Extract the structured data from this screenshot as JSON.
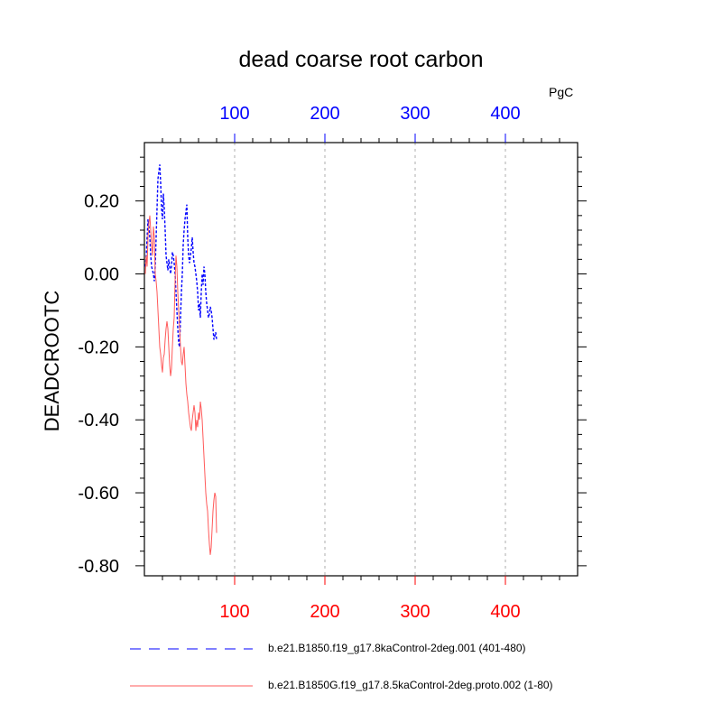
{
  "chart_data": {
    "type": "line",
    "title": "dead coarse root carbon",
    "ylabel": "DEADCROOTC",
    "units": "PgC",
    "xlim": [
      0,
      480
    ],
    "ylim": [
      -0.8275,
      0.36
    ],
    "x_ticks_bottom": [
      100,
      200,
      300,
      400
    ],
    "x_ticks_top": [
      100,
      200,
      300,
      400
    ],
    "y_ticks": [
      0.2,
      0.0,
      -0.2,
      -0.4,
      -0.6,
      -0.8
    ],
    "y_tick_labels": [
      "0.20",
      "0.00",
      "-0.20",
      "-0.40",
      "-0.60",
      "-0.80"
    ],
    "grid": "vertical dashed at top x ticks",
    "colors": {
      "blue_axis": "#0000ff",
      "red_axis": "#ff0000",
      "series_blue": "#0000ff",
      "series_red": "#ff5a5a"
    },
    "series": [
      {
        "name": "b.e21.B1850.f19_g17.8kaControl-2deg.001 (401-480)",
        "color": "#0000ff",
        "style": "dashed",
        "x": [
          1,
          2,
          3,
          4,
          5,
          6,
          7,
          8,
          9,
          10,
          11,
          12,
          13,
          14,
          15,
          16,
          17,
          18,
          19,
          20,
          21,
          22,
          23,
          24,
          25,
          26,
          27,
          28,
          29,
          30,
          31,
          32,
          33,
          34,
          35,
          36,
          37,
          38,
          39,
          40,
          41,
          42,
          43,
          44,
          45,
          46,
          47,
          48,
          49,
          50,
          51,
          52,
          53,
          54,
          55,
          56,
          57,
          58,
          59,
          60,
          61,
          62,
          63,
          64,
          65,
          66,
          67,
          68,
          69,
          70,
          71,
          72,
          73,
          74,
          75,
          76,
          77,
          78,
          79,
          80
        ],
        "y": [
          0.02,
          0.05,
          0.1,
          0.15,
          0.13,
          0.1,
          0.05,
          0.02,
          0.01,
          0.0,
          -0.02,
          0.02,
          0.1,
          0.18,
          0.26,
          0.28,
          0.3,
          0.25,
          0.18,
          0.15,
          0.22,
          0.18,
          0.12,
          0.05,
          0.03,
          0.01,
          0.04,
          0.02,
          0.0,
          0.02,
          0.06,
          0.05,
          0.03,
          0.0,
          -0.05,
          -0.1,
          -0.15,
          -0.19,
          -0.2,
          -0.12,
          -0.05,
          0.0,
          0.08,
          0.12,
          0.15,
          0.17,
          0.19,
          0.1,
          0.05,
          0.03,
          0.05,
          0.07,
          0.1,
          0.06,
          0.03,
          0.02,
          0.0,
          -0.02,
          -0.05,
          -0.1,
          -0.08,
          -0.12,
          -0.05,
          0.0,
          -0.03,
          0.02,
          0.0,
          -0.05,
          -0.08,
          -0.1,
          -0.12,
          -0.11,
          -0.09,
          -0.1,
          -0.12,
          -0.15,
          -0.18,
          -0.17,
          -0.16,
          -0.18
        ]
      },
      {
        "name": "b.e21.B1850G.f19_g17.8.5kaControl-2deg.proto.002 (1-80)",
        "color": "#ff5a5a",
        "style": "solid",
        "x": [
          1,
          2,
          3,
          4,
          5,
          6,
          7,
          8,
          9,
          10,
          11,
          12,
          13,
          14,
          15,
          16,
          17,
          18,
          19,
          20,
          21,
          22,
          23,
          24,
          25,
          26,
          27,
          28,
          29,
          30,
          31,
          32,
          33,
          34,
          35,
          36,
          37,
          38,
          39,
          40,
          41,
          42,
          43,
          44,
          45,
          46,
          47,
          48,
          49,
          50,
          51,
          52,
          53,
          54,
          55,
          56,
          57,
          58,
          59,
          60,
          61,
          62,
          63,
          64,
          65,
          66,
          67,
          68,
          69,
          70,
          71,
          72,
          73,
          74,
          75,
          76,
          77,
          78,
          79,
          80
        ],
        "y": [
          0.0,
          0.05,
          0.02,
          0.1,
          0.14,
          0.16,
          0.12,
          0.08,
          0.05,
          0.13,
          0.1,
          0.0,
          -0.02,
          -0.05,
          -0.1,
          -0.15,
          -0.2,
          -0.22,
          -0.25,
          -0.27,
          -0.23,
          -0.22,
          -0.18,
          -0.15,
          -0.13,
          -0.15,
          -0.2,
          -0.25,
          -0.28,
          -0.26,
          -0.2,
          -0.15,
          -0.12,
          -0.02,
          0.05,
          0.02,
          -0.05,
          -0.1,
          -0.15,
          -0.2,
          -0.24,
          -0.25,
          -0.22,
          -0.2,
          -0.25,
          -0.3,
          -0.33,
          -0.35,
          -0.38,
          -0.4,
          -0.42,
          -0.43,
          -0.4,
          -0.38,
          -0.36,
          -0.38,
          -0.43,
          -0.4,
          -0.42,
          -0.38,
          -0.4,
          -0.35,
          -0.37,
          -0.4,
          -0.45,
          -0.5,
          -0.55,
          -0.6,
          -0.63,
          -0.65,
          -0.7,
          -0.74,
          -0.77,
          -0.75,
          -0.7,
          -0.65,
          -0.62,
          -0.6,
          -0.61,
          -0.71
        ]
      }
    ]
  }
}
